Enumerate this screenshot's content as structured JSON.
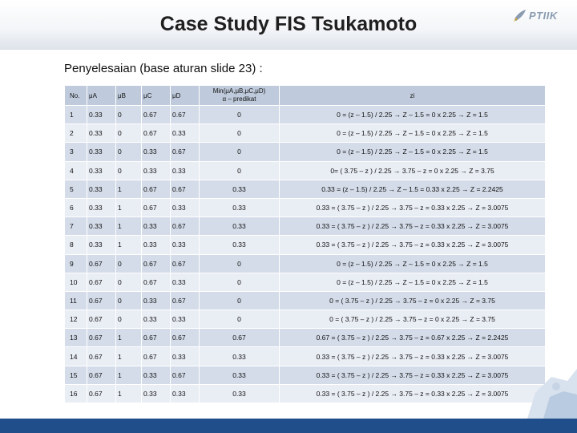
{
  "title": "Case Study FIS Tsukamoto",
  "logo": {
    "text": "PTIIK",
    "icon": "rocket-logo-icon"
  },
  "subtitle": "Penyelesaian (base aturan slide 23) :",
  "table": {
    "headers": {
      "no": "No.",
      "mua": "μA",
      "mub": "μB",
      "muc": "μC",
      "mud": "μD",
      "pred_line1": "Min(μA,μB,μC,μD)",
      "pred_line2": "α – predikat",
      "z": "zi"
    },
    "rows": [
      {
        "no": "1",
        "a": "0.33",
        "b": "0",
        "c": "0.67",
        "d": "0.67",
        "pred": "0",
        "z": "0 = (z – 1.5) / 2.25 → Z – 1.5 = 0 x 2.25 → Z = 1.5"
      },
      {
        "no": "2",
        "a": "0.33",
        "b": "0",
        "c": "0.67",
        "d": "0.33",
        "pred": "0",
        "z": "0 = (z – 1.5) / 2.25 → Z – 1.5 = 0 x 2.25 → Z = 1.5"
      },
      {
        "no": "3",
        "a": "0.33",
        "b": "0",
        "c": "0.33",
        "d": "0.67",
        "pred": "0",
        "z": "0 = (z – 1.5) / 2.25 → Z – 1.5 = 0 x 2.25 → Z = 1.5"
      },
      {
        "no": "4",
        "a": "0.33",
        "b": "0",
        "c": "0.33",
        "d": "0.33",
        "pred": "0",
        "z": "0= ( 3.75 – z ) / 2.25 → 3.75 – z = 0 x 2.25 → Z = 3.75"
      },
      {
        "no": "5",
        "a": "0.33",
        "b": "1",
        "c": "0.67",
        "d": "0.67",
        "pred": "0.33",
        "z": "0.33 = (z – 1.5) / 2.25 → Z – 1.5 = 0.33 x 2.25 → Z = 2.2425"
      },
      {
        "no": "6",
        "a": "0.33",
        "b": "1",
        "c": "0.67",
        "d": "0.33",
        "pred": "0.33",
        "z": "0.33 = ( 3.75 – z ) / 2.25 → 3.75 – z = 0.33 x 2.25 → Z = 3.0075"
      },
      {
        "no": "7",
        "a": "0.33",
        "b": "1",
        "c": "0.33",
        "d": "0.67",
        "pred": "0.33",
        "z": "0.33 = ( 3.75 – z ) / 2.25 → 3.75 – z = 0.33 x 2.25 → Z = 3.0075"
      },
      {
        "no": "8",
        "a": "0.33",
        "b": "1",
        "c": "0.33",
        "d": "0.33",
        "pred": "0.33",
        "z": "0.33 = ( 3.75 – z ) / 2.25 → 3.75 – z = 0.33 x 2.25 → Z = 3.0075"
      },
      {
        "no": "9",
        "a": "0.67",
        "b": "0",
        "c": "0.67",
        "d": "0.67",
        "pred": "0",
        "z": "0 = (z – 1.5) / 2.25 → Z – 1.5 = 0 x 2.25 → Z = 1.5"
      },
      {
        "no": "10",
        "a": "0.67",
        "b": "0",
        "c": "0.67",
        "d": "0.33",
        "pred": "0",
        "z": "0 = (z – 1.5) / 2.25 → Z – 1.5 = 0 x 2.25 → Z = 1.5"
      },
      {
        "no": "11",
        "a": "0.67",
        "b": "0",
        "c": "0.33",
        "d": "0.67",
        "pred": "0",
        "z": "0 = ( 3.75 – z ) / 2.25 → 3.75 – z = 0 x 2.25 → Z = 3.75"
      },
      {
        "no": "12",
        "a": "0.67",
        "b": "0",
        "c": "0.33",
        "d": "0.33",
        "pred": "0",
        "z": "0 = ( 3.75 – z ) / 2.25 → 3.75 – z = 0 x 2.25 → Z = 3.75"
      },
      {
        "no": "13",
        "a": "0.67",
        "b": "1",
        "c": "0.67",
        "d": "0.67",
        "pred": "0.67",
        "z": "0.67 = ( 3.75 – z ) / 2.25 → 3.75 – z = 0.67 x 2.25 → Z = 2.2425"
      },
      {
        "no": "14",
        "a": "0.67",
        "b": "1",
        "c": "0.67",
        "d": "0.33",
        "pred": "0.33",
        "z": "0.33 = ( 3.75 – z ) / 2.25 → 3.75 – z = 0.33 x 2.25 → Z = 3.0075"
      },
      {
        "no": "15",
        "a": "0.67",
        "b": "1",
        "c": "0.33",
        "d": "0.67",
        "pred": "0.33",
        "z": "0.33 = ( 3.75 – z ) / 2.25 → 3.75 – z = 0.33 x 2.25 → Z = 3.0075"
      },
      {
        "no": "16",
        "a": "0.67",
        "b": "1",
        "c": "0.33",
        "d": "0.33",
        "pred": "0.33",
        "z": "0.33 = ( 3.75 – z ) / 2.25 → 3.75 – z = 0.33 x 2.25 → Z = 3.0075"
      }
    ]
  },
  "colors": {
    "header_cell": "#bfcbdc",
    "row_odd": "#d4dce9",
    "row_even": "#e9edf4",
    "footer_bar": "#1f4e8a"
  }
}
